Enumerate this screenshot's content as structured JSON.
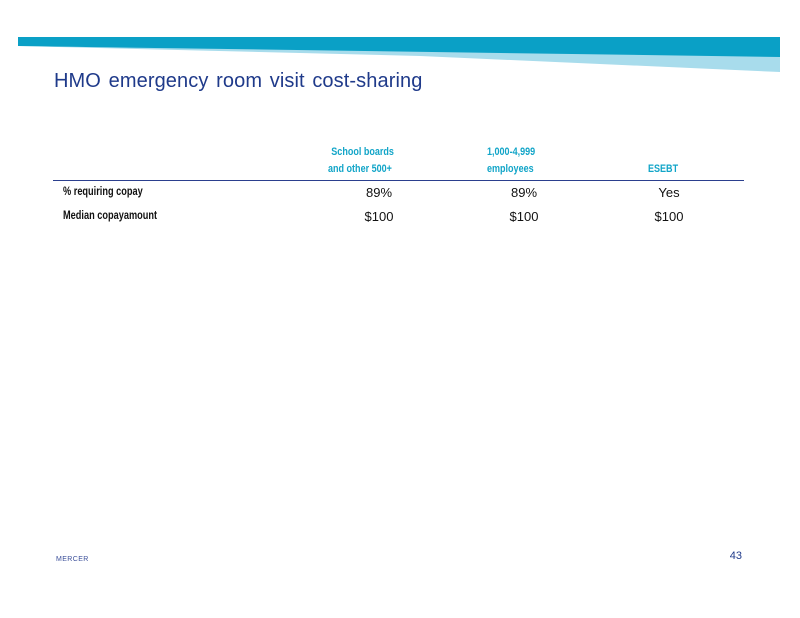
{
  "colors": {
    "title": "#1f3a8a",
    "header_text": "#12a5c8",
    "banner_dark": "#0aa0c6",
    "banner_light": "#a8dcec",
    "rule": "#2b3f8e"
  },
  "slide": {
    "title": "HMO emergency room visit cost-sharing",
    "page_number": "43",
    "brand": "MERCER"
  },
  "table": {
    "columns": [
      {
        "line1": "School      boards",
        "line2": "and     other      500+"
      },
      {
        "line1": "1,000-4,999",
        "line2": "employees"
      },
      {
        "line1": "",
        "line2": "ESEBT"
      }
    ],
    "rows": [
      {
        "label": "%     requiring          copay",
        "values": [
          "89%",
          "89%",
          "Yes"
        ]
      },
      {
        "label": "Median          copayamount",
        "values": [
          "$100",
          "$100",
          "$100"
        ]
      }
    ]
  }
}
